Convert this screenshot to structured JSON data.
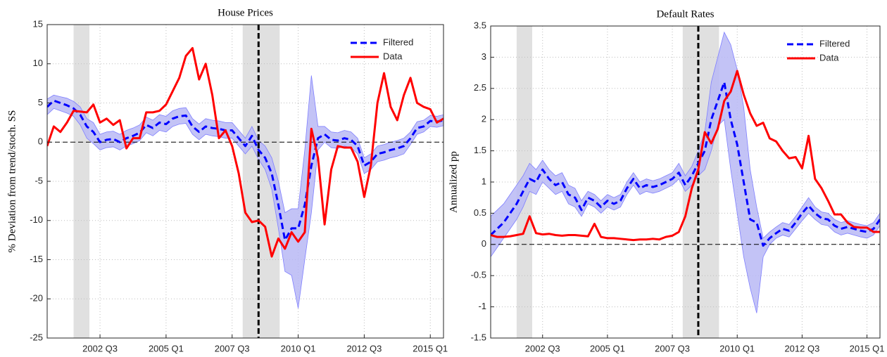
{
  "chart_data": [
    {
      "type": "line",
      "title": "House Prices",
      "ylabel": "% Deviation from trend/stoch. SS",
      "x": [
        2000.5,
        2000.75,
        2001,
        2001.25,
        2001.5,
        2001.75,
        2002,
        2002.25,
        2002.5,
        2002.75,
        2003,
        2003.25,
        2003.5,
        2003.75,
        2004,
        2004.25,
        2004.5,
        2004.75,
        2005,
        2005.25,
        2005.5,
        2005.75,
        2006,
        2006.25,
        2006.5,
        2006.75,
        2007,
        2007.25,
        2007.5,
        2007.75,
        2008,
        2008.25,
        2008.5,
        2008.75,
        2009,
        2009.25,
        2009.5,
        2009.75,
        2010,
        2010.25,
        2010.5,
        2010.75,
        2011,
        2011.25,
        2011.5,
        2011.75,
        2012,
        2012.25,
        2012.5,
        2012.75,
        2013,
        2013.25,
        2013.5,
        2013.75,
        2014,
        2014.25,
        2014.5,
        2014.75,
        2015,
        2015.25,
        2015.5
      ],
      "series": [
        {
          "name": "Filtered",
          "color": "#0000ff",
          "style": "dashed",
          "values": [
            4.5,
            5.3,
            5.0,
            4.7,
            4.3,
            3.5,
            2.0,
            1.3,
            0.0,
            0.3,
            0.4,
            0.0,
            0.5,
            0.8,
            1.2,
            2.2,
            1.8,
            2.5,
            2.3,
            3.0,
            3.3,
            3.4,
            2.0,
            1.3,
            2.0,
            1.8,
            1.7,
            1.5,
            1.5,
            0.5,
            -0.5,
            0.8,
            -1.0,
            -2.0,
            -4.0,
            -8.0,
            -12.5,
            -11.0,
            -11.0,
            -8.0,
            -3.0,
            0.5,
            1.0,
            0.3,
            0.2,
            0.5,
            0.3,
            -0.5,
            -3.0,
            -2.5,
            -1.5,
            -1.3,
            -1.0,
            -0.8,
            -0.5,
            0.5,
            1.8,
            2.0,
            2.7,
            2.6,
            2.8
          ]
        },
        {
          "name": "Data",
          "color": "#ff0000",
          "style": "solid",
          "values": [
            -0.5,
            2.0,
            1.3,
            2.5,
            4.0,
            3.9,
            3.8,
            4.8,
            2.5,
            3.0,
            2.2,
            2.8,
            -0.8,
            0.5,
            0.5,
            3.8,
            3.8,
            4.0,
            4.8,
            6.5,
            8.2,
            11.0,
            12.0,
            8.0,
            10.0,
            6.0,
            0.5,
            1.5,
            -0.5,
            -4.0,
            -9.0,
            -10.2,
            -10.0,
            -10.8,
            -14.6,
            -12.3,
            -13.6,
            -11.5,
            -12.7,
            -11.5,
            1.7,
            -2.0,
            -10.5,
            -3.5,
            -0.5,
            -0.7,
            -0.7,
            -2.5,
            -7.0,
            -3.0,
            5.0,
            8.8,
            4.5,
            2.8,
            6.0,
            8.2,
            5.0,
            4.5,
            4.2,
            2.5,
            3.0
          ]
        }
      ],
      "band": {
        "color": "#b8b8f4",
        "edge": "#7f7fff",
        "lower": [
          3.5,
          4.3,
          4.0,
          3.7,
          3.3,
          2.2,
          0.5,
          -0.2,
          -1.0,
          -0.7,
          -0.6,
          -1.0,
          -0.5,
          -0.2,
          0.2,
          1.2,
          0.8,
          1.5,
          1.3,
          2.0,
          2.3,
          2.4,
          1.0,
          0.3,
          1.0,
          0.8,
          0.7,
          0.5,
          0.5,
          -0.5,
          -1.5,
          -0.5,
          -2.2,
          -3.5,
          -6.0,
          -11.0,
          -16.5,
          -17.0,
          -21.2,
          -15.0,
          -9.0,
          -1.0,
          0.0,
          -0.7,
          -0.8,
          -0.5,
          -0.7,
          -1.5,
          -4.0,
          -3.5,
          -2.5,
          -2.3,
          -2.0,
          -1.8,
          -1.5,
          -0.3,
          1.0,
          1.3,
          2.0,
          1.9,
          2.1
        ],
        "upper": [
          5.5,
          6.0,
          5.8,
          5.6,
          5.2,
          4.5,
          3.0,
          2.5,
          1.0,
          1.3,
          1.4,
          1.0,
          1.5,
          1.8,
          2.2,
          3.2,
          2.8,
          3.5,
          3.3,
          4.0,
          4.3,
          4.4,
          3.0,
          2.3,
          3.0,
          2.8,
          2.7,
          2.5,
          2.5,
          1.5,
          0.5,
          2.0,
          0.2,
          -0.5,
          -2.0,
          -5.0,
          -9.0,
          -8.5,
          -8.5,
          -1.0,
          8.5,
          2.0,
          2.0,
          1.3,
          1.2,
          1.5,
          1.3,
          0.5,
          -2.0,
          -1.5,
          -0.5,
          -0.3,
          0.0,
          0.2,
          0.5,
          1.3,
          2.6,
          2.8,
          3.4,
          3.3,
          3.5
        ]
      },
      "xlim": [
        2000.5,
        2015.5
      ],
      "xticks": [
        {
          "value": 2002.5,
          "label": "2002 Q3"
        },
        {
          "value": 2005,
          "label": "2005 Q1"
        },
        {
          "value": 2007.5,
          "label": "2007 Q3"
        },
        {
          "value": 2010,
          "label": "2010 Q1"
        },
        {
          "value": 2012.5,
          "label": "2012 Q3"
        },
        {
          "value": 2015,
          "label": "2015 Q1"
        }
      ],
      "ylim": [
        -25,
        15
      ],
      "yticks": [
        -25,
        -20,
        -15,
        -10,
        -5,
        0,
        5,
        10,
        15
      ],
      "shaded": [
        [
          2001.5,
          2002.1
        ],
        [
          2007.9,
          2009.3
        ]
      ],
      "shade_color": "#e0e0e0",
      "vline": 2008.5,
      "hline": 0,
      "grid": true,
      "legend": "upper right"
    },
    {
      "type": "line",
      "title": "Default Rates",
      "ylabel": "Annualized pp",
      "x": [
        2000.5,
        2000.75,
        2001,
        2001.25,
        2001.5,
        2001.75,
        2002,
        2002.25,
        2002.5,
        2002.75,
        2003,
        2003.25,
        2003.5,
        2003.75,
        2004,
        2004.25,
        2004.5,
        2004.75,
        2005,
        2005.25,
        2005.5,
        2005.75,
        2006,
        2006.25,
        2006.5,
        2006.75,
        2007,
        2007.25,
        2007.5,
        2007.75,
        2008,
        2008.25,
        2008.5,
        2008.75,
        2009,
        2009.25,
        2009.5,
        2009.75,
        2010,
        2010.25,
        2010.5,
        2010.75,
        2011,
        2011.25,
        2011.5,
        2011.75,
        2012,
        2012.25,
        2012.5,
        2012.75,
        2013,
        2013.25,
        2013.5,
        2013.75,
        2014,
        2014.25,
        2014.5,
        2014.75,
        2015,
        2015.25,
        2015.5
      ],
      "series": [
        {
          "name": "Filtered",
          "color": "#0000ff",
          "style": "dashed",
          "values": [
            0.15,
            0.25,
            0.35,
            0.5,
            0.65,
            0.85,
            1.05,
            1.0,
            1.2,
            1.05,
            0.95,
            1.0,
            0.8,
            0.75,
            0.55,
            0.75,
            0.7,
            0.6,
            0.7,
            0.65,
            0.7,
            0.9,
            1.05,
            0.9,
            0.95,
            0.92,
            0.95,
            1.0,
            1.05,
            1.15,
            0.95,
            1.1,
            1.3,
            1.5,
            2.0,
            2.3,
            2.6,
            2.0,
            1.6,
            1.0,
            0.4,
            0.35,
            -0.02,
            0.1,
            0.18,
            0.25,
            0.22,
            0.35,
            0.5,
            0.62,
            0.5,
            0.42,
            0.4,
            0.3,
            0.25,
            0.28,
            0.25,
            0.22,
            0.2,
            0.25,
            0.4
          ]
        },
        {
          "name": "Data",
          "color": "#ff0000",
          "style": "solid",
          "values": [
            0.15,
            0.12,
            0.12,
            0.13,
            0.15,
            0.17,
            0.45,
            0.18,
            0.16,
            0.17,
            0.15,
            0.14,
            0.15,
            0.15,
            0.14,
            0.13,
            0.33,
            0.12,
            0.1,
            0.1,
            0.09,
            0.08,
            0.07,
            0.08,
            0.08,
            0.09,
            0.08,
            0.12,
            0.14,
            0.2,
            0.45,
            0.9,
            1.2,
            1.8,
            1.62,
            1.85,
            2.3,
            2.45,
            2.78,
            2.4,
            2.1,
            1.9,
            1.95,
            1.7,
            1.65,
            1.5,
            1.38,
            1.4,
            1.22,
            1.74,
            1.05,
            0.9,
            0.7,
            0.48,
            0.48,
            0.35,
            0.28,
            0.27,
            0.27,
            0.2,
            0.2
          ]
        }
      ],
      "band": {
        "color": "#b8b8f4",
        "edge": "#7f7fff",
        "lower": [
          -0.2,
          -0.05,
          0.1,
          0.25,
          0.4,
          0.6,
          0.85,
          0.8,
          1.0,
          0.9,
          0.8,
          0.85,
          0.65,
          0.6,
          0.45,
          0.65,
          0.6,
          0.5,
          0.6,
          0.55,
          0.6,
          0.8,
          0.95,
          0.8,
          0.85,
          0.82,
          0.85,
          0.9,
          0.95,
          1.05,
          0.85,
          0.95,
          1.1,
          1.2,
          1.5,
          1.9,
          2.0,
          1.2,
          0.5,
          -0.2,
          -0.7,
          -1.1,
          -0.2,
          0.0,
          0.1,
          0.15,
          0.12,
          0.25,
          0.38,
          0.5,
          0.4,
          0.32,
          0.3,
          0.2,
          0.15,
          0.18,
          0.15,
          0.12,
          0.1,
          0.15,
          0.3
        ],
        "upper": [
          0.45,
          0.55,
          0.65,
          0.8,
          0.95,
          1.1,
          1.3,
          1.2,
          1.35,
          1.2,
          1.1,
          1.15,
          0.95,
          0.9,
          0.7,
          0.85,
          0.8,
          0.7,
          0.8,
          0.75,
          0.8,
          1.0,
          1.15,
          1.0,
          1.05,
          1.02,
          1.05,
          1.1,
          1.15,
          1.3,
          1.1,
          1.25,
          1.5,
          1.8,
          2.6,
          3.0,
          3.4,
          3.2,
          2.8,
          2.2,
          1.2,
          0.6,
          0.1,
          0.2,
          0.28,
          0.35,
          0.32,
          0.45,
          0.6,
          0.75,
          0.6,
          0.52,
          0.5,
          0.4,
          0.35,
          0.38,
          0.35,
          0.32,
          0.3,
          0.35,
          0.5
        ]
      },
      "xlim": [
        2000.5,
        2015.5
      ],
      "xticks": [
        {
          "value": 2002.5,
          "label": "2002 Q3"
        },
        {
          "value": 2005,
          "label": "2005 Q1"
        },
        {
          "value": 2007.5,
          "label": "2007 Q3"
        },
        {
          "value": 2010,
          "label": "2010 Q1"
        },
        {
          "value": 2012.5,
          "label": "2012 Q3"
        },
        {
          "value": 2015,
          "label": "2015 Q1"
        }
      ],
      "ylim": [
        -1.5,
        3.5
      ],
      "yticks": [
        -1.5,
        -1,
        -0.5,
        0,
        0.5,
        1,
        1.5,
        2,
        2.5,
        3,
        3.5
      ],
      "shaded": [
        [
          2001.5,
          2002.1
        ],
        [
          2007.9,
          2009.3
        ]
      ],
      "shade_color": "#e0e0e0",
      "vline": 2008.5,
      "hline": 0,
      "grid": true,
      "legend": "upper right"
    }
  ]
}
